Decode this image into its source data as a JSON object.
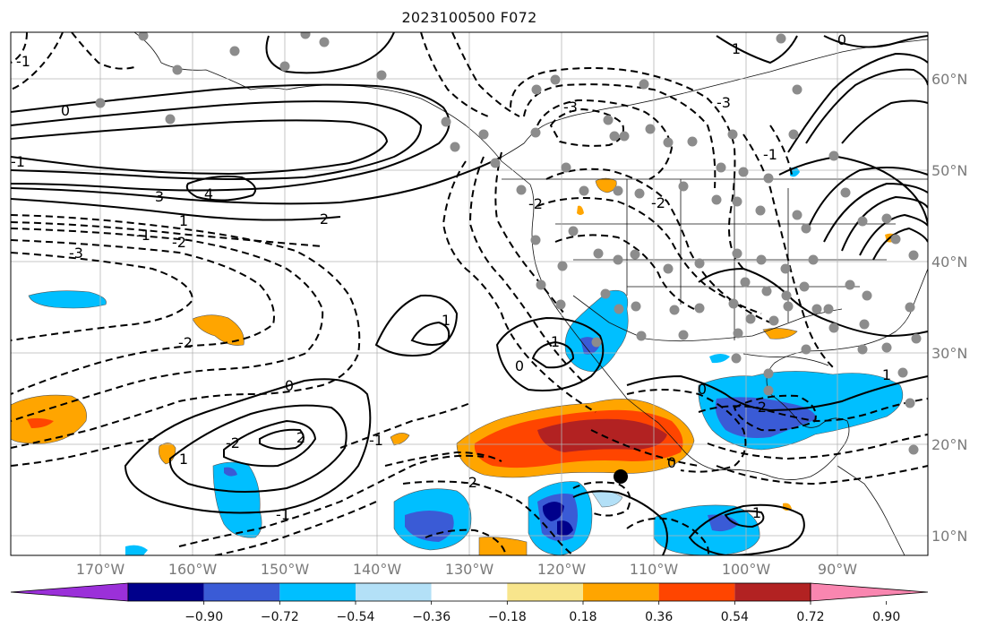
{
  "title": "2023100500 F072",
  "map": {
    "lon_labels": [
      "170°W",
      "160°W",
      "150°W",
      "140°W",
      "130°W",
      "120°W",
      "110°W",
      "100°W",
      "90°W"
    ],
    "lat_labels": [
      "60°N",
      "50°N",
      "40°N",
      "30°N",
      "20°N",
      "10°N"
    ],
    "gridlines": true,
    "contours": {
      "solid_labels": [
        "0",
        "1",
        "2",
        "3",
        "4",
        "1",
        "0",
        "1",
        "0",
        "0",
        "2",
        "1",
        "1",
        "1",
        "0",
        "0",
        "1"
      ],
      "dashed_labels": [
        "-3",
        "-2",
        "-1",
        "-2",
        "-1",
        "-3",
        "-2",
        "-2",
        "-2",
        "-1",
        "-2",
        "-3",
        "-1",
        "-1",
        "-2",
        "-1"
      ]
    },
    "markers": {
      "station_color": "#8c8c8c",
      "target_color": "#000000"
    }
  },
  "colorbar": {
    "ticks": [
      "−0.90",
      "−0.72",
      "−0.54",
      "−0.36",
      "−0.18",
      "0.18",
      "0.36",
      "0.54",
      "0.72",
      "0.90"
    ],
    "colors": [
      "#9b30d9",
      "#00008b",
      "#3a5bd6",
      "#00bfff",
      "#b3e0f7",
      "#ffffff",
      "#f8e58c",
      "#ffa500",
      "#ff4500",
      "#b22222",
      "#f986b0"
    ]
  }
}
